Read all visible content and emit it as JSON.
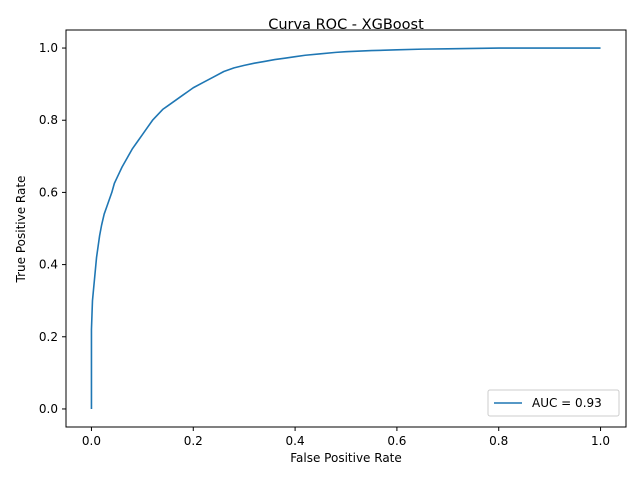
{
  "chart_data": {
    "type": "line",
    "title": "Curva ROC - XGBoost",
    "xlabel": "False Positive Rate",
    "ylabel": "True Positive Rate",
    "xlim": [
      -0.05,
      1.05
    ],
    "ylim": [
      -0.05,
      1.05
    ],
    "xticks": [
      "0.0",
      "0.2",
      "0.4",
      "0.6",
      "0.8",
      "1.0"
    ],
    "yticks": [
      "0.0",
      "0.2",
      "0.4",
      "0.6",
      "0.8",
      "1.0"
    ],
    "grid": false,
    "legend_position": "lower-right",
    "series": [
      {
        "name": "AUC = 0.93",
        "color": "#1f77b4",
        "x": [
          0,
          0,
          0.001,
          0.002,
          0.004,
          0.006,
          0.008,
          0.01,
          0.013,
          0.016,
          0.02,
          0.025,
          0.03,
          0.035,
          0.04,
          0.045,
          0.05,
          0.055,
          0.06,
          0.07,
          0.08,
          0.09,
          0.1,
          0.11,
          0.12,
          0.13,
          0.14,
          0.15,
          0.16,
          0.17,
          0.18,
          0.19,
          0.2,
          0.22,
          0.24,
          0.26,
          0.28,
          0.3,
          0.32,
          0.34,
          0.36,
          0.38,
          0.4,
          0.42,
          0.45,
          0.48,
          0.5,
          0.55,
          0.6,
          0.65,
          0.7,
          0.75,
          0.8,
          0.9,
          1.0
        ],
        "y": [
          0,
          0.22,
          0.26,
          0.3,
          0.33,
          0.36,
          0.39,
          0.42,
          0.45,
          0.48,
          0.51,
          0.54,
          0.56,
          0.58,
          0.6,
          0.625,
          0.64,
          0.655,
          0.67,
          0.695,
          0.72,
          0.74,
          0.76,
          0.78,
          0.8,
          0.815,
          0.83,
          0.84,
          0.85,
          0.86,
          0.87,
          0.88,
          0.89,
          0.905,
          0.92,
          0.935,
          0.945,
          0.952,
          0.958,
          0.963,
          0.968,
          0.972,
          0.976,
          0.98,
          0.984,
          0.988,
          0.99,
          0.993,
          0.995,
          0.997,
          0.998,
          0.999,
          1.0,
          1.0,
          1.0
        ]
      }
    ]
  }
}
